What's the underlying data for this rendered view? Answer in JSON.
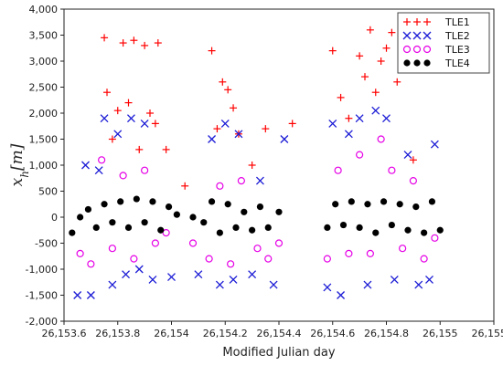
{
  "chart_data": {
    "type": "scatter",
    "title": "",
    "xlabel": "Modified Julian day",
    "ylabel": "x_h[m]",
    "xlim": [
      26153.6,
      26155.2
    ],
    "ylim": [
      -2000,
      4000
    ],
    "xticks": [
      26153.6,
      26153.8,
      26154.0,
      26154.2,
      26154.4,
      26154.6,
      26154.8,
      26155.0,
      26155.2
    ],
    "xtick_labels": [
      "26,153.6",
      "26,153.8",
      "26,154",
      "26,154.2",
      "26,154.4",
      "26,154.6",
      "26,154.8",
      "26,155",
      "26,155.2"
    ],
    "yticks": [
      -2000,
      -1500,
      -1000,
      -500,
      0,
      500,
      1000,
      1500,
      2000,
      2500,
      3000,
      3500,
      4000
    ],
    "ytick_labels": [
      "-2,000",
      "-1,500",
      "-1,000",
      "-500",
      "0",
      "500",
      "1,000",
      "1,500",
      "2,000",
      "2,500",
      "3,000",
      "3,500",
      "4,000"
    ],
    "grid": false,
    "legend_position": "top-right",
    "series": [
      {
        "name": "TLE1",
        "marker": "plus",
        "color": "#ff0000",
        "x": [
          26153.75,
          26153.76,
          26153.78,
          26153.8,
          26153.82,
          26153.84,
          26153.86,
          26153.88,
          26153.9,
          26153.92,
          26153.94,
          26153.95,
          26153.98,
          26154.05,
          26154.15,
          26154.17,
          26154.19,
          26154.21,
          26154.23,
          26154.25,
          26154.3,
          26154.35,
          26154.45,
          26154.6,
          26154.63,
          26154.66,
          26154.7,
          26154.72,
          26154.74,
          26154.76,
          26154.78,
          26154.8,
          26154.82,
          26154.84,
          26154.9
        ],
        "y": [
          3450,
          2400,
          1500,
          2050,
          3350,
          2200,
          3400,
          1300,
          3300,
          2000,
          1800,
          3350,
          1300,
          600,
          3200,
          1700,
          2600,
          2450,
          2100,
          1600,
          1000,
          1700,
          1800,
          3200,
          2300,
          1900,
          3100,
          2700,
          3600,
          2400,
          3000,
          3250,
          3550,
          2600,
          1100
        ]
      },
      {
        "name": "TLE2",
        "marker": "x",
        "color": "#1c1cd6",
        "x": [
          26153.65,
          26153.68,
          26153.7,
          26153.73,
          26153.75,
          26153.78,
          26153.8,
          26153.83,
          26153.85,
          26153.88,
          26153.9,
          26153.93,
          26154.0,
          26154.1,
          26154.15,
          26154.18,
          26154.2,
          26154.23,
          26154.25,
          26154.3,
          26154.33,
          26154.38,
          26154.42,
          26154.58,
          26154.6,
          26154.63,
          26154.66,
          26154.7,
          26154.73,
          26154.76,
          26154.8,
          26154.83,
          26154.88,
          26154.92,
          26154.96,
          26154.98
        ],
        "y": [
          -1500,
          1000,
          -1500,
          900,
          1900,
          -1300,
          1600,
          -1100,
          1900,
          -1000,
          1800,
          -1200,
          -1150,
          -1100,
          1500,
          -1300,
          1800,
          -1200,
          1600,
          -1100,
          700,
          -1300,
          1500,
          -1350,
          1800,
          -1500,
          1600,
          1900,
          -1300,
          2050,
          1900,
          -1200,
          1200,
          -1300,
          -1200,
          1400
        ]
      },
      {
        "name": "TLE3",
        "marker": "circle",
        "color": "#e600e6",
        "x": [
          26153.66,
          26153.7,
          26153.74,
          26153.78,
          26153.82,
          26153.86,
          26153.9,
          26153.94,
          26153.98,
          26154.08,
          26154.14,
          26154.18,
          26154.22,
          26154.26,
          26154.32,
          26154.36,
          26154.4,
          26154.58,
          26154.62,
          26154.66,
          26154.7,
          26154.74,
          26154.78,
          26154.82,
          26154.86,
          26154.9,
          26154.94,
          26154.98
        ],
        "y": [
          -700,
          -900,
          1100,
          -600,
          800,
          -800,
          900,
          -500,
          -300,
          -500,
          -800,
          600,
          -900,
          700,
          -600,
          -800,
          -500,
          -800,
          900,
          -700,
          1200,
          -700,
          1500,
          900,
          -600,
          700,
          -800,
          -400
        ]
      },
      {
        "name": "TLE4",
        "marker": "dot",
        "color": "#000000",
        "x": [
          26153.63,
          26153.66,
          26153.69,
          26153.72,
          26153.75,
          26153.78,
          26153.81,
          26153.84,
          26153.87,
          26153.9,
          26153.93,
          26153.96,
          26153.99,
          26154.02,
          26154.08,
          26154.12,
          26154.15,
          26154.18,
          26154.21,
          26154.24,
          26154.27,
          26154.3,
          26154.33,
          26154.36,
          26154.4,
          26154.58,
          26154.61,
          26154.64,
          26154.67,
          26154.7,
          26154.73,
          26154.76,
          26154.79,
          26154.82,
          26154.85,
          26154.88,
          26154.91,
          26154.94,
          26154.97,
          26155.0
        ],
        "y": [
          -300,
          0,
          150,
          -200,
          250,
          -100,
          300,
          -200,
          350,
          -100,
          300,
          -250,
          200,
          50,
          0,
          -100,
          300,
          -300,
          250,
          -200,
          100,
          -250,
          200,
          -200,
          100,
          -200,
          250,
          -150,
          300,
          -200,
          250,
          -300,
          300,
          -150,
          250,
          -250,
          200,
          -300,
          300,
          -250
        ]
      }
    ]
  }
}
